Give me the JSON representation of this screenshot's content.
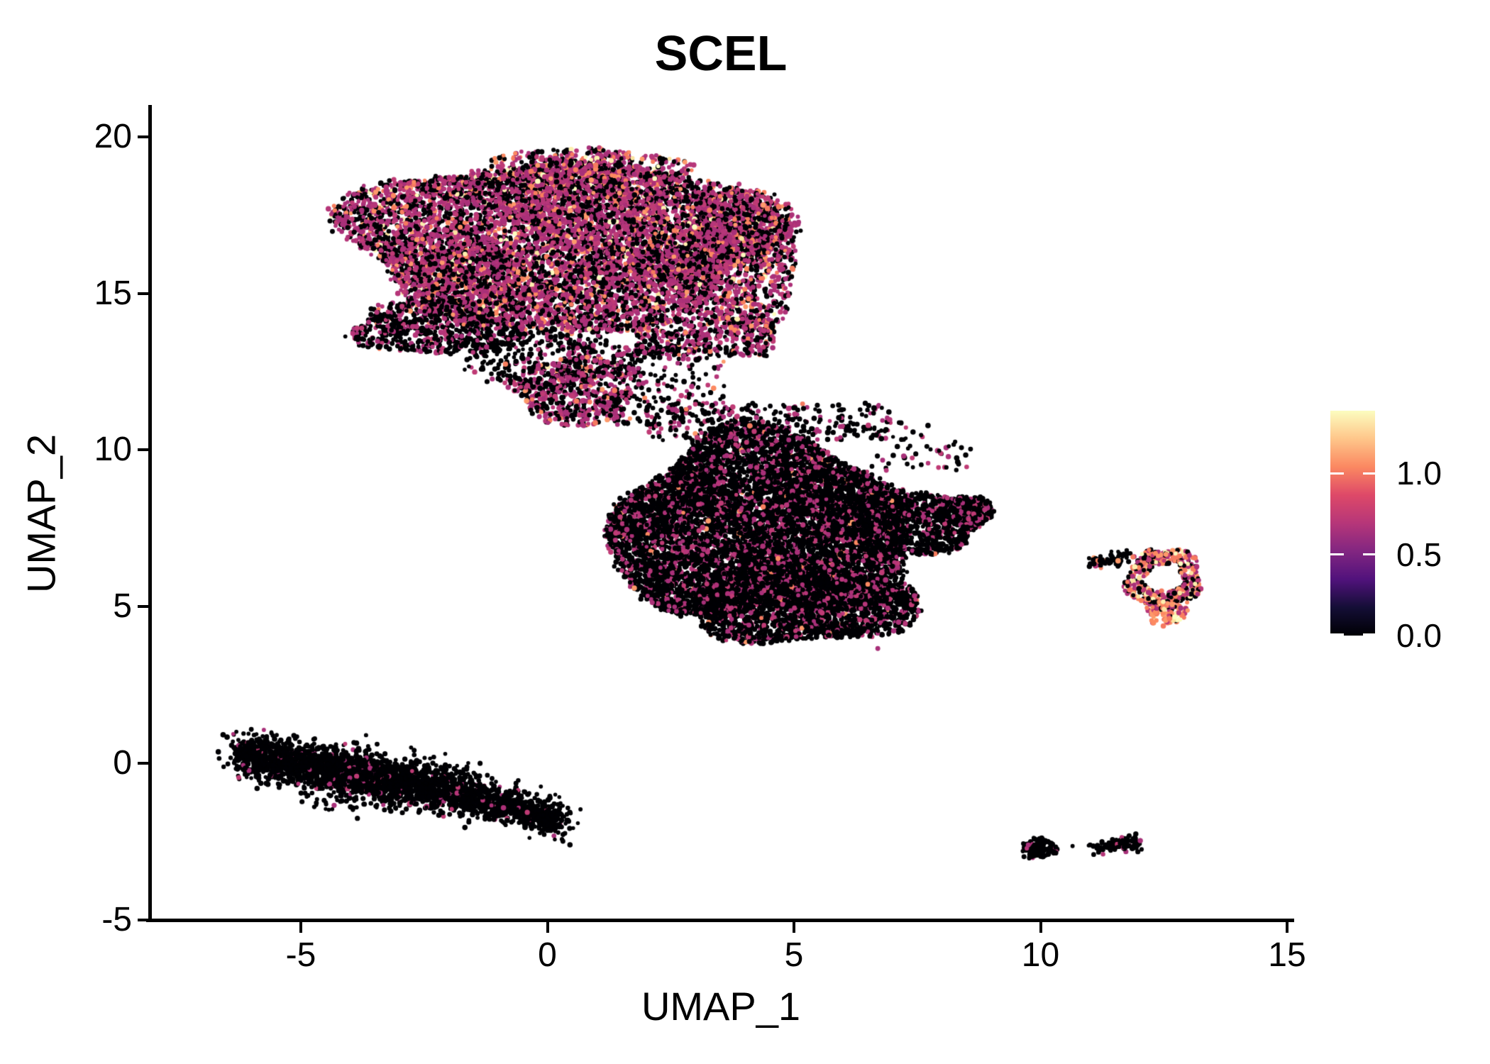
{
  "chart_data": {
    "type": "scatter",
    "title": "SCEL",
    "xlabel": "UMAP_1",
    "ylabel": "UMAP_2",
    "grid": false,
    "background": "#ffffff",
    "xlim": [
      -8.1,
      15.2
    ],
    "ylim": [
      -5.1,
      20.9
    ],
    "x_ticks": [
      {
        "label": "-5",
        "value": -5
      },
      {
        "label": "0",
        "value": 0
      },
      {
        "label": "5",
        "value": 5
      },
      {
        "label": "10",
        "value": 10
      },
      {
        "label": "15",
        "value": 15
      }
    ],
    "y_ticks": [
      {
        "label": "-5",
        "value": -5
      },
      {
        "label": "0",
        "value": 0
      },
      {
        "label": "5",
        "value": 5
      },
      {
        "label": "10",
        "value": 10
      },
      {
        "label": "15",
        "value": 15
      },
      {
        "label": "20",
        "value": 20
      }
    ],
    "legend": {
      "position": "right",
      "colormap": "magma",
      "vmin": 0,
      "vmax": 1.386,
      "ticks": [
        {
          "label": "0.0",
          "value": 0.0
        },
        {
          "label": "0.5",
          "value": 0.5
        },
        {
          "label": "1.0",
          "value": 1.0
        }
      ],
      "gradient_stops": [
        {
          "at": 0.0,
          "color": "#000004"
        },
        {
          "at": 0.125,
          "color": "#140e36"
        },
        {
          "at": 0.25,
          "color": "#51127c"
        },
        {
          "at": 0.375,
          "color": "#822681"
        },
        {
          "at": 0.5,
          "color": "#b63679"
        },
        {
          "at": 0.625,
          "color": "#de4968"
        },
        {
          "at": 0.75,
          "color": "#fb8861"
        },
        {
          "at": 0.875,
          "color": "#fec68a"
        },
        {
          "at": 1.0,
          "color": "#fcfdbf"
        }
      ]
    },
    "point_radius_px": 3.3,
    "seed": 7,
    "expression_levels": [
      0,
      0.693,
      1.099,
      1.386
    ],
    "point_colors": [
      "#000004",
      "#b63679",
      "#fc8961",
      "#fcfdbf"
    ],
    "point_color_variants": {
      "0": [
        "#000004"
      ],
      "1": [
        "#b63679",
        "#ad3178",
        "#bf3b75",
        "#a83079"
      ],
      "2": [
        "#fc8961",
        "#f87e5e",
        "#fd9a6b",
        "#f57a60"
      ],
      "3": [
        "#fcfdbf",
        "#fdefae",
        "#fbe3a0"
      ]
    },
    "clusters": [
      {
        "name": "upper-main",
        "shape": "ellipse",
        "cx": 0.3,
        "cy": 16.6,
        "rx": 4.3,
        "ry": 2.7,
        "n": 8500,
        "mix": [
          0.4,
          0.49,
          0.09,
          0.02
        ]
      },
      {
        "name": "upper-top-edge",
        "shape": "ellipse",
        "cx": 0.8,
        "cy": 18.85,
        "rx": 1.9,
        "ry": 0.85,
        "n": 600,
        "mix": [
          0.28,
          0.5,
          0.17,
          0.05
        ]
      },
      {
        "name": "upper-right-lobe",
        "shape": "ellipse",
        "cx": 3.8,
        "cy": 16.0,
        "rx": 1.3,
        "ry": 2.2,
        "n": 1100,
        "mix": [
          0.38,
          0.5,
          0.1,
          0.02
        ]
      },
      {
        "name": "upper-left-fringe",
        "shape": "ellipse",
        "cx": -2.3,
        "cy": 13.9,
        "rx": 1.7,
        "ry": 0.85,
        "n": 700,
        "mix": [
          0.72,
          0.26,
          0.02,
          0
        ]
      },
      {
        "name": "upper-bottom-strip",
        "shape": "ellipse",
        "cx": 0.0,
        "cy": 12.9,
        "rx": 1.8,
        "ry": 0.95,
        "n": 380,
        "mix": [
          0.78,
          0.21,
          0.01,
          0
        ]
      },
      {
        "name": "upper-lowerright-fringe",
        "shape": "box",
        "x0": 1.8,
        "x1": 4.6,
        "y0": 13.0,
        "y1": 14.2,
        "n": 450,
        "mix": [
          0.45,
          0.48,
          0.07,
          0
        ]
      },
      {
        "name": "neck",
        "shape": "ellipse",
        "cx": 0.6,
        "cy": 11.9,
        "rx": 1.3,
        "ry": 1.1,
        "n": 600,
        "mix": [
          0.45,
          0.48,
          0.06,
          0.01
        ]
      },
      {
        "name": "neck-scatter",
        "shape": "box",
        "x0": 1.2,
        "x1": 3.6,
        "y0": 10.8,
        "y1": 13.4,
        "n": 170,
        "mix": [
          0.68,
          0.3,
          0.02,
          0
        ]
      },
      {
        "name": "central-main",
        "shape": "ellipse",
        "cx": 4.3,
        "cy": 7.5,
        "rx": 3.0,
        "ry": 2.95,
        "n": 9000,
        "mix": [
          0.8,
          0.19,
          0.01,
          0
        ]
      },
      {
        "name": "central-right",
        "shape": "ellipse",
        "cx": 7.3,
        "cy": 7.7,
        "rx": 1.6,
        "ry": 1.05,
        "n": 1200,
        "mix": [
          0.845,
          0.15,
          0.005,
          0
        ]
      },
      {
        "name": "central-right-tip",
        "shape": "ellipse",
        "cx": 8.5,
        "cy": 8.0,
        "rx": 0.55,
        "ry": 0.5,
        "n": 250,
        "mix": [
          0.82,
          0.18,
          0,
          0
        ]
      },
      {
        "name": "central-bottom",
        "shape": "ellipse",
        "cx": 5.2,
        "cy": 5.1,
        "rx": 2.3,
        "ry": 1.3,
        "n": 2500,
        "mix": [
          0.8,
          0.19,
          0.01,
          0
        ]
      },
      {
        "name": "central-top-fringe",
        "shape": "box",
        "x0": 2.0,
        "x1": 7.0,
        "y0": 10.3,
        "y1": 11.5,
        "n": 280,
        "mix": [
          0.72,
          0.27,
          0.01,
          0
        ]
      },
      {
        "name": "central-right-scatter",
        "shape": "box",
        "x0": 6.5,
        "x1": 8.6,
        "y0": 9.3,
        "y1": 10.9,
        "n": 55,
        "mix": [
          0.85,
          0.15,
          0,
          0
        ]
      },
      {
        "name": "central-outlier-dot",
        "shape": "point",
        "x": 6.7,
        "y": 3.66,
        "n": 1,
        "mix": [
          0,
          1,
          0,
          0
        ]
      },
      {
        "name": "band-left",
        "shape": "band",
        "p1": [
          -6.3,
          0.3
        ],
        "p2": [
          -4.2,
          -0.25
        ],
        "w": 0.33,
        "n": 1100,
        "mix": [
          0.95,
          0.05,
          0,
          0
        ]
      },
      {
        "name": "band-mid",
        "shape": "band",
        "p1": [
          -4.2,
          -0.25
        ],
        "p2": [
          -1.6,
          -1.0
        ],
        "w": 0.36,
        "n": 1400,
        "mix": [
          0.94,
          0.06,
          0,
          0
        ]
      },
      {
        "name": "band-right",
        "shape": "band",
        "p1": [
          -1.6,
          -1.0
        ],
        "p2": [
          0.3,
          -1.85
        ],
        "w": 0.28,
        "n": 700,
        "mix": [
          0.95,
          0.05,
          0,
          0
        ]
      },
      {
        "name": "band-under-scatter",
        "shape": "box",
        "x0": -4.9,
        "x1": -2.7,
        "y0": -1.5,
        "y1": -0.9,
        "n": 60,
        "mix": [
          0.96,
          0.04,
          0,
          0
        ]
      },
      {
        "name": "ring",
        "shape": "ring",
        "cx": 12.5,
        "cy": 5.9,
        "rox": 0.7,
        "roy": 1.05,
        "rix": 0.33,
        "riy": 0.5,
        "n": 520,
        "mix": [
          0.26,
          0.3,
          0.33,
          0.11
        ]
      },
      {
        "name": "ring-lower-lobe",
        "shape": "ellipse",
        "cx": 12.55,
        "cy": 4.95,
        "rx": 0.42,
        "ry": 0.55,
        "n": 150,
        "mix": [
          0.08,
          0.14,
          0.6,
          0.18
        ]
      },
      {
        "name": "ring-streak",
        "shape": "band",
        "p1": [
          10.9,
          6.35
        ],
        "p2": [
          11.85,
          6.62
        ],
        "w": 0.13,
        "n": 70,
        "mix": [
          0.82,
          0.1,
          0.08,
          0
        ]
      },
      {
        "name": "br-blob-left",
        "shape": "ellipse",
        "cx": 9.97,
        "cy": -2.72,
        "rx": 0.38,
        "ry": 0.33,
        "n": 120,
        "mix": [
          0.94,
          0.06,
          0,
          0
        ]
      },
      {
        "name": "br-dot",
        "shape": "point",
        "x": 10.65,
        "y": -2.65,
        "n": 1,
        "mix": [
          1,
          0,
          0,
          0
        ]
      },
      {
        "name": "br-blob-right",
        "shape": "band",
        "p1": [
          11.05,
          -2.75
        ],
        "p2": [
          12.0,
          -2.5
        ],
        "w": 0.12,
        "n": 110,
        "mix": [
          0.92,
          0.08,
          0,
          0
        ]
      }
    ]
  }
}
